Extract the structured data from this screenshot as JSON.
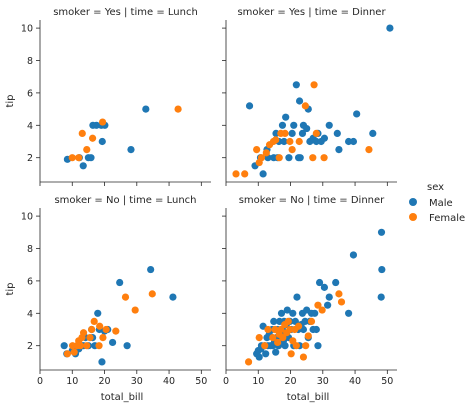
{
  "chart_data": {
    "type": "scatter",
    "xlabel": "total_bill",
    "ylabel": "tip",
    "xlim": [
      0,
      53
    ],
    "ylim": [
      0.5,
      10.5
    ],
    "xticks": [
      0,
      10,
      20,
      30,
      40,
      50
    ],
    "yticks": [
      2,
      4,
      6,
      8,
      10
    ],
    "grid": false,
    "legend": {
      "title": "sex",
      "placement": "right",
      "entries": [
        {
          "name": "Male",
          "color": "#1f77b4"
        },
        {
          "name": "Female",
          "color": "#ff7f0e"
        }
      ]
    },
    "facets": [
      {
        "title": "smoker = Yes | time = Lunch",
        "series": [
          {
            "name": "Male",
            "points": [
              [
                8.5,
                1.9
              ],
              [
                12.2,
                2.0
              ],
              [
                13.4,
                1.5
              ],
              [
                15.0,
                2.0
              ],
              [
                15.8,
                2.0
              ],
              [
                16.4,
                4.0
              ],
              [
                17.5,
                4.0
              ],
              [
                19.0,
                4.0
              ],
              [
                19.3,
                3.0
              ],
              [
                20.1,
                4.0
              ],
              [
                28.2,
                2.5
              ],
              [
                32.8,
                5.0
              ]
            ]
          },
          {
            "name": "Female",
            "points": [
              [
                10.0,
                2.0
              ],
              [
                12.0,
                2.0
              ],
              [
                13.1,
                3.5
              ],
              [
                14.5,
                2.5
              ],
              [
                16.3,
                3.2
              ],
              [
                19.4,
                4.2
              ],
              [
                42.8,
                5.0
              ]
            ]
          }
        ]
      },
      {
        "title": "smoker = Yes | time = Dinner",
        "series": [
          {
            "name": "Male",
            "points": [
              [
                7.3,
                5.2
              ],
              [
                9.0,
                1.5
              ],
              [
                10.7,
                2.0
              ],
              [
                11.5,
                1.0
              ],
              [
                12.7,
                2.5
              ],
              [
                13.0,
                2.0
              ],
              [
                14.8,
                2.0
              ],
              [
                15.5,
                3.5
              ],
              [
                16.0,
                2.0
              ],
              [
                16.4,
                3.0
              ],
              [
                17.5,
                4.0
              ],
              [
                18.0,
                3.0
              ],
              [
                18.5,
                4.5
              ],
              [
                19.5,
                2.0
              ],
              [
                20.5,
                3.5
              ],
              [
                21.0,
                4.0
              ],
              [
                21.8,
                6.5
              ],
              [
                22.5,
                2.0
              ],
              [
                22.8,
                5.5
              ],
              [
                23.0,
                2.0
              ],
              [
                23.7,
                3.5
              ],
              [
                24.0,
                4.0
              ],
              [
                25.0,
                3.8
              ],
              [
                25.5,
                5.0
              ],
              [
                26.0,
                3.0
              ],
              [
                27.0,
                3.2
              ],
              [
                28.0,
                3.0
              ],
              [
                28.5,
                3.5
              ],
              [
                29.5,
                3.0
              ],
              [
                30.5,
                3.2
              ],
              [
                32.0,
                4.0
              ],
              [
                34.5,
                3.5
              ],
              [
                35.0,
                2.5
              ],
              [
                38.0,
                3.0
              ],
              [
                39.5,
                3.0
              ],
              [
                40.5,
                4.7
              ],
              [
                45.5,
                3.5
              ],
              [
                50.8,
                10.0
              ]
            ]
          },
          {
            "name": "Female",
            "points": [
              [
                3.1,
                1.0
              ],
              [
                5.8,
                1.0
              ],
              [
                9.5,
                2.5
              ],
              [
                10.3,
                1.7
              ],
              [
                11.0,
                2.0
              ],
              [
                12.5,
                2.3
              ],
              [
                13.5,
                2.8
              ],
              [
                14.7,
                3.0
              ],
              [
                15.4,
                3.1
              ],
              [
                16.5,
                2.0
              ],
              [
                17.0,
                3.5
              ],
              [
                18.3,
                3.5
              ],
              [
                19.8,
                3.0
              ],
              [
                20.5,
                2.5
              ],
              [
                22.7,
                3.0
              ],
              [
                24.6,
                5.2
              ],
              [
                26.9,
                2.0
              ],
              [
                27.3,
                6.5
              ],
              [
                28.0,
                3.5
              ],
              [
                30.4,
                2.0
              ],
              [
                44.3,
                2.5
              ]
            ]
          }
        ]
      },
      {
        "title": "smoker = No | time = Lunch",
        "series": [
          {
            "name": "Male",
            "points": [
              [
                7.5,
                2.0
              ],
              [
                8.3,
                1.5
              ],
              [
                10.0,
                1.7
              ],
              [
                10.3,
                1.7
              ],
              [
                11.0,
                1.5
              ],
              [
                12.0,
                1.8
              ],
              [
                13.0,
                2.0
              ],
              [
                13.5,
                2.0
              ],
              [
                14.1,
                2.5
              ],
              [
                15.0,
                2.0
              ],
              [
                16.0,
                3.0
              ],
              [
                16.3,
                2.5
              ],
              [
                17.0,
                2.0
              ],
              [
                17.9,
                4.0
              ],
              [
                18.4,
                3.0
              ],
              [
                19.2,
                1.0
              ],
              [
                20.0,
                2.9
              ],
              [
                21.0,
                3.0
              ],
              [
                22.5,
                2.2
              ],
              [
                24.7,
                5.9
              ],
              [
                27.0,
                2.0
              ],
              [
                34.3,
                6.7
              ],
              [
                41.2,
                5.0
              ]
            ]
          },
          {
            "name": "Female",
            "points": [
              [
                8.5,
                1.5
              ],
              [
                10.1,
                2.0
              ],
              [
                10.6,
                1.6
              ],
              [
                11.5,
                2.0
              ],
              [
                12.0,
                2.3
              ],
              [
                12.5,
                2.0
              ],
              [
                13.0,
                2.5
              ],
              [
                13.5,
                2.8
              ],
              [
                14.5,
                2.0
              ],
              [
                15.5,
                2.5
              ],
              [
                16.0,
                3.0
              ],
              [
                16.8,
                3.5
              ],
              [
                18.3,
                2.0
              ],
              [
                18.5,
                3.2
              ],
              [
                19.5,
                2.5
              ],
              [
                20.5,
                3.0
              ],
              [
                23.5,
                2.9
              ],
              [
                26.5,
                5.0
              ],
              [
                29.5,
                4.2
              ],
              [
                34.8,
                5.2
              ]
            ]
          }
        ]
      },
      {
        "title": "smoker = No | time = Dinner",
        "series": [
          {
            "name": "Male",
            "points": [
              [
                9.5,
                1.5
              ],
              [
                10.0,
                1.7
              ],
              [
                10.3,
                1.3
              ],
              [
                10.8,
                1.8
              ],
              [
                11.0,
                2.0
              ],
              [
                11.5,
                3.2
              ],
              [
                12.0,
                2.0
              ],
              [
                12.3,
                1.5
              ],
              [
                12.7,
                2.5
              ],
              [
                13.0,
                2.0
              ],
              [
                13.4,
                2.7
              ],
              [
                13.8,
                2.0
              ],
              [
                14.3,
                3.0
              ],
              [
                14.5,
                2.0
              ],
              [
                14.8,
                3.5
              ],
              [
                15.0,
                2.2
              ],
              [
                15.4,
                1.6
              ],
              [
                15.7,
                2.5
              ],
              [
                16.0,
                3.0
              ],
              [
                16.3,
                2.0
              ],
              [
                16.6,
                3.5
              ],
              [
                16.9,
                2.7
              ],
              [
                17.2,
                4.0
              ],
              [
                17.5,
                3.0
              ],
              [
                17.8,
                2.3
              ],
              [
                18.0,
                3.5
              ],
              [
                18.3,
                2.0
              ],
              [
                18.7,
                3.3
              ],
              [
                19.0,
                4.2
              ],
              [
                19.4,
                2.5
              ],
              [
                19.8,
                3.5
              ],
              [
                20.2,
                3.0
              ],
              [
                20.7,
                4.0
              ],
              [
                21.0,
                2.0
              ],
              [
                21.5,
                3.5
              ],
              [
                22.0,
                5.0
              ],
              [
                22.4,
                3.0
              ],
              [
                22.8,
                2.0
              ],
              [
                23.3,
                3.3
              ],
              [
                23.7,
                4.0
              ],
              [
                24.0,
                3.0
              ],
              [
                24.5,
                3.5
              ],
              [
                25.0,
                4.2
              ],
              [
                25.5,
                2.5
              ],
              [
                26.0,
                3.5
              ],
              [
                26.5,
                4.0
              ],
              [
                27.0,
                3.0
              ],
              [
                27.5,
                4.0
              ],
              [
                28.0,
                3.0
              ],
              [
                28.5,
                2.0
              ],
              [
                29.0,
                5.9
              ],
              [
                30.5,
                5.6
              ],
              [
                31.5,
                4.5
              ],
              [
                32.0,
                5.0
              ],
              [
                34.0,
                5.9
              ],
              [
                38.0,
                4.0
              ],
              [
                39.5,
                7.6
              ],
              [
                48.2,
                9.0
              ],
              [
                48.3,
                6.7
              ],
              [
                48.1,
                5.0
              ]
            ]
          },
          {
            "name": "Female",
            "points": [
              [
                7.0,
                1.0
              ],
              [
                10.3,
                2.5
              ],
              [
                12.0,
                2.0
              ],
              [
                13.0,
                3.0
              ],
              [
                14.5,
                2.5
              ],
              [
                15.2,
                3.0
              ],
              [
                16.0,
                2.2
              ],
              [
                16.5,
                2.7
              ],
              [
                17.0,
                3.0
              ],
              [
                17.6,
                2.5
              ],
              [
                18.2,
                3.3
              ],
              [
                18.8,
                2.8
              ],
              [
                19.3,
                3.5
              ],
              [
                19.8,
                3.0
              ],
              [
                20.2,
                1.5
              ],
              [
                20.7,
                2.3
              ],
              [
                21.3,
                3.0
              ],
              [
                21.8,
                2.0
              ],
              [
                22.5,
                3.2
              ],
              [
                24.0,
                1.3
              ],
              [
                24.7,
                2.0
              ],
              [
                25.5,
                2.6
              ],
              [
                26.5,
                3.5
              ],
              [
                28.5,
                4.5
              ],
              [
                29.8,
                4.2
              ],
              [
                35.0,
                5.2
              ],
              [
                35.8,
                4.7
              ]
            ]
          }
        ]
      }
    ]
  }
}
